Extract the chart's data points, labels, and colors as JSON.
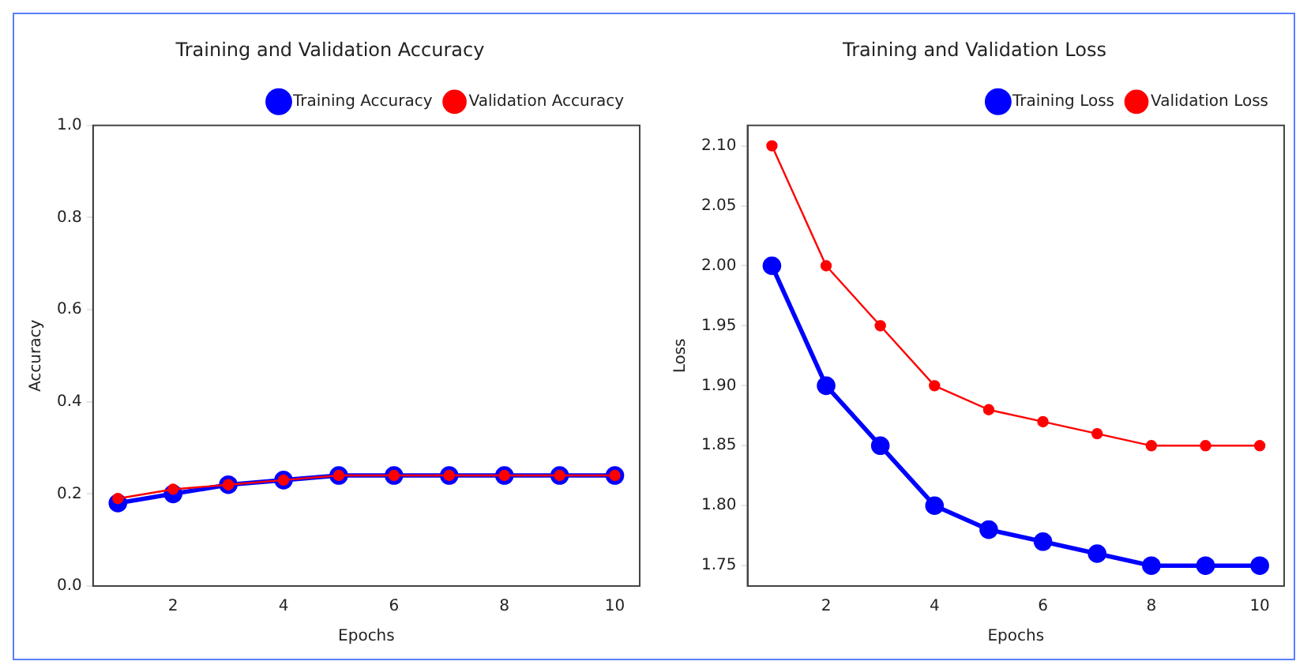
{
  "chart_data": [
    {
      "type": "line",
      "title": "Training and Validation Accuracy",
      "xlabel": "Epochs",
      "ylabel": "Accuracy",
      "x": [
        1,
        2,
        3,
        4,
        5,
        6,
        7,
        8,
        9,
        10
      ],
      "xlim": [
        0.55,
        10.45
      ],
      "xticks": [
        2,
        4,
        6,
        8,
        10
      ],
      "ylim": [
        0,
        1
      ],
      "yticks": [
        {
          "value": 0,
          "label": "0.0"
        },
        0.2,
        0.4,
        0.6,
        0.8,
        {
          "value": 1,
          "label": "1.0"
        }
      ],
      "grid": false,
      "legend": "top right",
      "marker": "circle",
      "line_style": "solid",
      "series": [
        {
          "name": "Training Accuracy",
          "color": "#0000ff",
          "values": [
            0.18,
            0.2,
            0.22,
            0.23,
            0.24,
            0.24,
            0.24,
            0.24,
            0.24,
            0.24
          ]
        },
        {
          "name": "Validation Accuracy",
          "color": "#ff0000",
          "values": [
            0.19,
            0.21,
            0.22,
            0.23,
            0.24,
            0.24,
            0.24,
            0.24,
            0.24,
            0.24
          ]
        }
      ]
    },
    {
      "type": "line",
      "title": "Training and Validation Loss",
      "xlabel": "Epochs",
      "ylabel": "Loss",
      "x": [
        1,
        2,
        3,
        4,
        5,
        6,
        7,
        8,
        9,
        10
      ],
      "xlim": [
        0.55,
        10.45
      ],
      "xticks": [
        2,
        4,
        6,
        8,
        10
      ],
      "ylim": [
        1.733,
        2.117
      ],
      "yticks": [
        1.75,
        {
          "value": 1.8,
          "label": "1.80"
        },
        1.85,
        {
          "value": 1.9,
          "label": "1.90"
        },
        1.95,
        {
          "value": 2,
          "label": "2.00"
        },
        2.05,
        {
          "value": 2.1,
          "label": "2.10"
        }
      ],
      "grid": false,
      "legend": "top right",
      "marker": "circle",
      "line_style": "solid",
      "series": [
        {
          "name": "Training Loss",
          "color": "#0000ff",
          "values": [
            2.0,
            1.9,
            1.85,
            1.8,
            1.78,
            1.77,
            1.76,
            1.75,
            1.75,
            1.75
          ]
        },
        {
          "name": "Validation Loss",
          "color": "#ff0000",
          "values": [
            2.1,
            2.0,
            1.95,
            1.9,
            1.88,
            1.87,
            1.86,
            1.85,
            1.85,
            1.85
          ]
        }
      ]
    }
  ]
}
